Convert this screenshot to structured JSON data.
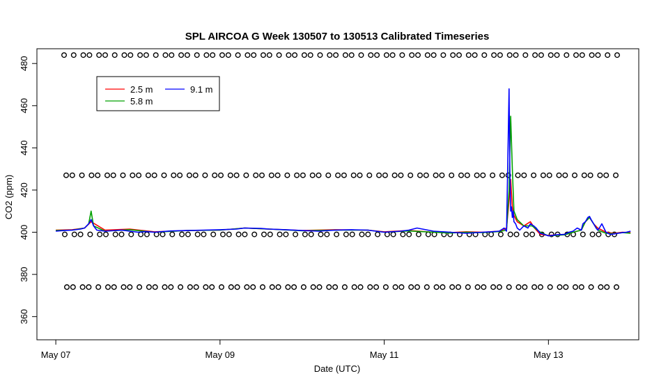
{
  "chart_data": {
    "type": "line",
    "title": "SPL AIRCOA G  Week 130507 to 130513  Calibrated Timeseries",
    "xlabel": "Date (UTC)",
    "ylabel": "CO2 (ppm)",
    "x_ticks": [
      "May 07",
      "May 09",
      "May 11",
      "May 13"
    ],
    "x_tick_days": [
      7,
      9,
      11,
      13
    ],
    "xlim": [
      6.77,
      14.1
    ],
    "y_ticks": [
      360,
      380,
      400,
      420,
      440,
      460,
      480
    ],
    "ylim": [
      349,
      487
    ],
    "grid": false,
    "legend_position": "top-left",
    "series": [
      {
        "name": "2.5 m",
        "color": "#ff0000",
        "x": [
          7.0,
          7.2,
          7.35,
          7.43,
          7.6,
          7.9,
          8.2,
          8.6,
          9.0,
          9.3,
          9.6,
          10.0,
          10.4,
          10.8,
          11.0,
          11.3,
          11.6,
          11.8,
          12.0,
          12.2,
          12.4,
          12.49,
          12.52,
          12.54,
          12.56,
          12.58,
          12.62,
          12.7,
          12.78,
          12.83,
          12.9,
          13.0,
          13.2,
          13.3,
          13.4,
          13.45,
          13.5,
          13.55,
          13.6,
          13.7,
          13.8,
          13.9,
          14.0
        ],
        "values": [
          401,
          401.2,
          402,
          405,
          401,
          401.5,
          400.2,
          400.8,
          401,
          402,
          401.5,
          400.8,
          401.2,
          401,
          400.2,
          400.8,
          400,
          399.8,
          400.2,
          400,
          400.5,
          402,
          415,
          425,
          412,
          408,
          405,
          403,
          405,
          402,
          399,
          398.5,
          399,
          400,
          401,
          405,
          407,
          404,
          402,
          400,
          399.5,
          400,
          399.8
        ]
      },
      {
        "name": "5.8 m",
        "color": "#00a000",
        "x": [
          7.0,
          7.2,
          7.35,
          7.4,
          7.43,
          7.46,
          7.6,
          7.9,
          8.2,
          8.6,
          9.0,
          9.3,
          9.6,
          10.0,
          10.4,
          10.8,
          11.0,
          11.3,
          11.6,
          11.8,
          12.0,
          12.2,
          12.4,
          12.49,
          12.52,
          12.54,
          12.56,
          12.58,
          12.62,
          12.7,
          12.8,
          12.9,
          13.0,
          13.2,
          13.3,
          13.4,
          13.45,
          13.5,
          13.55,
          13.6,
          13.7,
          13.8,
          13.9,
          14.0
        ],
        "values": [
          400.8,
          401,
          402,
          404,
          410,
          403,
          400.5,
          401.2,
          400,
          400.8,
          401,
          402,
          401.5,
          400.7,
          401,
          401,
          400,
          400.6,
          400,
          399.6,
          400,
          399.8,
          400.3,
          401,
          420,
          455,
          430,
          410,
          406,
          403,
          403,
          400,
          398.3,
          398.8,
          400,
          401,
          405,
          407,
          404,
          401,
          399.5,
          399.3,
          399.8,
          399.5
        ]
      },
      {
        "name": "9.1 m",
        "color": "#0000ff",
        "x": [
          7.0,
          7.1,
          7.2,
          7.3,
          7.35,
          7.4,
          7.43,
          7.46,
          7.5,
          7.6,
          7.8,
          7.9,
          8.0,
          8.1,
          8.2,
          8.4,
          8.6,
          8.8,
          9.0,
          9.2,
          9.3,
          9.5,
          9.6,
          9.8,
          10.0,
          10.2,
          10.4,
          10.6,
          10.8,
          11.0,
          11.2,
          11.3,
          11.4,
          11.6,
          11.8,
          12.0,
          12.2,
          12.3,
          12.4,
          12.46,
          12.49,
          12.51,
          12.52,
          12.53,
          12.54,
          12.55,
          12.56,
          12.57,
          12.58,
          12.6,
          12.62,
          12.65,
          12.7,
          12.75,
          12.78,
          12.82,
          12.85,
          12.9,
          12.95,
          13.0,
          13.05,
          13.1,
          13.2,
          13.25,
          13.3,
          13.35,
          13.4,
          13.42,
          13.45,
          13.48,
          13.5,
          13.52,
          13.55,
          13.58,
          13.6,
          13.62,
          13.65,
          13.7,
          13.75,
          13.8,
          13.85,
          13.9,
          13.95,
          14.0
        ],
        "values": [
          400.5,
          400.8,
          401,
          401.5,
          402,
          404,
          406,
          403,
          401,
          400.5,
          401,
          400.5,
          400,
          400.3,
          400,
          400.6,
          400.8,
          401,
          401.2,
          401.5,
          402,
          401.8,
          401.5,
          401.2,
          400.8,
          400.5,
          401,
          401.2,
          401,
          400,
          400.5,
          401,
          402,
          400.5,
          400,
          399.5,
          400,
          400.2,
          400.5,
          402,
          400.5,
          445,
          468,
          430,
          410,
          412,
          407,
          410,
          405,
          404,
          402,
          401,
          403,
          402,
          404,
          403,
          402,
          399.5,
          399,
          398.3,
          398.5,
          398.8,
          399,
          400,
          400.5,
          402,
          401,
          404,
          405,
          407,
          407.5,
          406,
          404,
          402,
          401,
          402,
          404,
          400,
          399,
          399.2,
          399.5,
          399.8,
          400,
          400.5
        ]
      }
    ],
    "calibration_rows": [
      {
        "value": 484,
        "count": 68
      },
      {
        "value": 427,
        "count": 68
      },
      {
        "value": 399,
        "count": 68
      },
      {
        "value": 374,
        "count": 68
      }
    ]
  }
}
